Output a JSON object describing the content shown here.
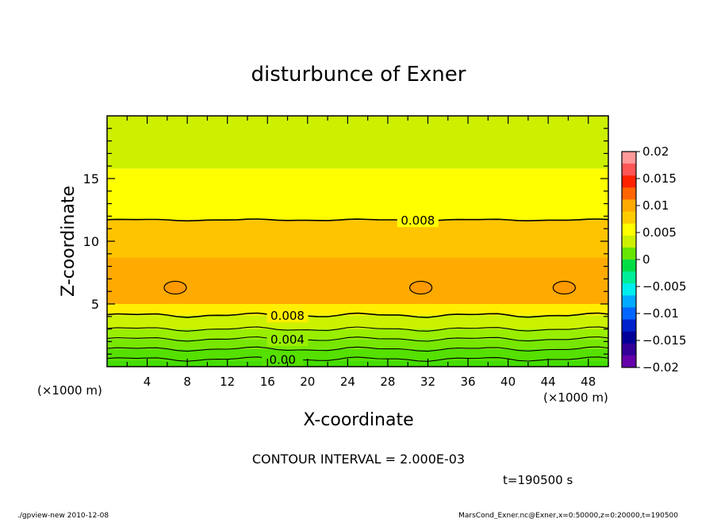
{
  "chart_data": {
    "type": "heatmap",
    "title": "disturbunce of Exner",
    "xlabel": "X-coordinate",
    "ylabel": "Z-coordinate",
    "x_unit": "(×1000 m)",
    "y_unit": "(×1000 m)",
    "xlim": [
      0,
      50
    ],
    "ylim": [
      0,
      20
    ],
    "x_ticks": [
      "4",
      "8",
      "12",
      "16",
      "20",
      "24",
      "28",
      "32",
      "36",
      "40",
      "44",
      "48"
    ],
    "x_tick_values": [
      4,
      8,
      12,
      16,
      20,
      24,
      28,
      32,
      36,
      40,
      44,
      48
    ],
    "y_ticks": [
      "5",
      "10",
      "15"
    ],
    "y_tick_values": [
      5,
      10,
      15
    ],
    "contour_interval": "CONTOUR INTERVAL = 2.000E-03",
    "time_label": "t=190500 s",
    "contour_labels": [
      {
        "text": "0.008",
        "x": 31,
        "z": 11.7
      },
      {
        "text": "0.008",
        "x": 18,
        "z": 4.1
      },
      {
        "text": "0.004",
        "x": 18,
        "z": 2.2
      },
      {
        "text": "0.00",
        "x": 17.5,
        "z": 0.6
      }
    ],
    "bands": [
      {
        "z0": 0.0,
        "z1": 0.5,
        "color": "#44dd00"
      },
      {
        "z0": 0.5,
        "z1": 1.4,
        "color": "#55e000"
      },
      {
        "z0": 1.4,
        "z1": 2.2,
        "color": "#77e600"
      },
      {
        "z0": 2.2,
        "z1": 3.0,
        "color": "#99ee00"
      },
      {
        "z0": 3.0,
        "z1": 4.1,
        "color": "#ccf200"
      },
      {
        "z0": 4.1,
        "z1": 5.0,
        "color": "#ffee00"
      },
      {
        "z0": 5.0,
        "z1": 8.7,
        "color": "#ffaa00"
      },
      {
        "z0": 8.7,
        "z1": 11.7,
        "color": "#ffc400"
      },
      {
        "z0": 11.7,
        "z1": 15.8,
        "color": "#ffff00"
      },
      {
        "z0": 15.8,
        "z1": 20.0,
        "color": "#ccf000"
      }
    ],
    "contours": [
      11.7,
      4.1,
      3.0,
      2.2,
      1.4,
      0.6
    ],
    "closed_contours": [
      {
        "x": 6.8,
        "z": 6.3
      },
      {
        "x": 31.3,
        "z": 6.3
      },
      {
        "x": 45.6,
        "z": 6.3
      }
    ],
    "colorbar": {
      "labels": [
        "0.02",
        "0.015",
        "0.01",
        "0.005",
        "0",
        "−0.005",
        "−0.01",
        "−0.015",
        "−0.02"
      ],
      "values": [
        0.02,
        0.015,
        0.01,
        0.005,
        0,
        -0.005,
        -0.01,
        -0.015,
        -0.02
      ],
      "colors": [
        "#ff9999",
        "#ff5555",
        "#ff2200",
        "#ff6600",
        "#ffaa00",
        "#ffcc00",
        "#ffff00",
        "#ccf000",
        "#66e600",
        "#00dd44",
        "#00ee99",
        "#00eeee",
        "#00aaff",
        "#0066ff",
        "#0022cc",
        "#000099",
        "#330099",
        "#6600aa"
      ]
    }
  },
  "footer": {
    "left": "./gpview-new  2010-12-08",
    "right": "MarsCond_Exner.nc@Exner,x=0:50000,z=0:20000,t=190500"
  }
}
